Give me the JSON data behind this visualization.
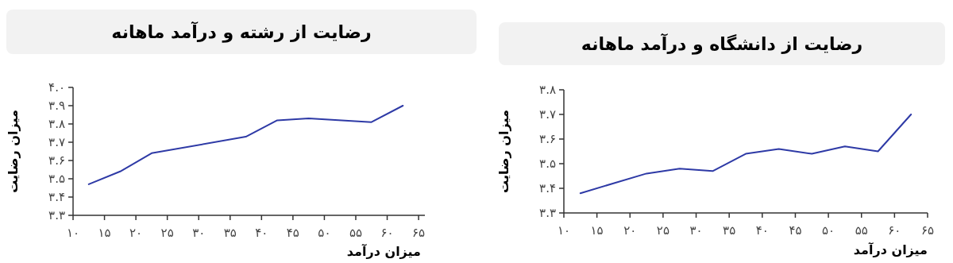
{
  "chart_data": [
    {
      "type": "line",
      "title": "رضایت از رشته و درآمد ماهانه",
      "xlabel": "میزان درآمد",
      "ylabel": "میزان رضایت",
      "x": [
        12.5,
        17.5,
        22.5,
        37.5,
        42.5,
        47.5,
        57.5,
        62.5
      ],
      "series": [
        {
          "color": "#2e3aa6",
          "values": [
            3.47,
            3.54,
            3.64,
            3.73,
            3.82,
            3.83,
            3.81,
            3.9
          ]
        }
      ],
      "xlim": [
        10,
        66
      ],
      "ylim": [
        3.3,
        4.0
      ],
      "xticks": [
        {
          "value": 10,
          "label": "۱۰"
        },
        {
          "value": 15,
          "label": "۱۵"
        },
        {
          "value": 20,
          "label": "۲۰"
        },
        {
          "value": 25,
          "label": "۲۵"
        },
        {
          "value": 30,
          "label": "۳۰"
        },
        {
          "value": 35,
          "label": "۳۵"
        },
        {
          "value": 40,
          "label": "۴۰"
        },
        {
          "value": 45,
          "label": "۴۵"
        },
        {
          "value": 50,
          "label": "۵۰"
        },
        {
          "value": 55,
          "label": "۵۵"
        },
        {
          "value": 60,
          "label": "۶۰"
        },
        {
          "value": 65,
          "label": "۶۵"
        }
      ],
      "yticks": [
        {
          "value": 3.3,
          "label": "۳.۳"
        },
        {
          "value": 3.4,
          "label": "۳.۴"
        },
        {
          "value": 3.5,
          "label": "۳.۵"
        },
        {
          "value": 3.6,
          "label": "۳.۶"
        },
        {
          "value": 3.7,
          "label": "۳.۷"
        },
        {
          "value": 3.8,
          "label": "۳.۸"
        },
        {
          "value": 3.9,
          "label": "۳.۹"
        },
        {
          "value": 4.0,
          "label": "۴.۰"
        }
      ],
      "grid": false
    },
    {
      "type": "line",
      "title": "رضایت از دانشگاه و درآمد ماهانه",
      "xlabel": "میزان درآمد",
      "ylabel": "میزان رضایت",
      "x": [
        12.5,
        17.5,
        22.5,
        27.5,
        32.5,
        37.5,
        42.5,
        47.5,
        52.5,
        57.5,
        62.5
      ],
      "series": [
        {
          "color": "#2e3aa6",
          "values": [
            3.38,
            3.42,
            3.46,
            3.48,
            3.47,
            3.54,
            3.56,
            3.54,
            3.57,
            3.55,
            3.7
          ]
        }
      ],
      "xlim": [
        10,
        65
      ],
      "ylim": [
        3.3,
        3.8
      ],
      "xticks": [
        {
          "value": 10,
          "label": "۱۰"
        },
        {
          "value": 15,
          "label": "۱۵"
        },
        {
          "value": 20,
          "label": "۲۰"
        },
        {
          "value": 25,
          "label": "۲۵"
        },
        {
          "value": 30,
          "label": "۳۰"
        },
        {
          "value": 35,
          "label": "۳۵"
        },
        {
          "value": 40,
          "label": "۴۰"
        },
        {
          "value": 45,
          "label": "۴۵"
        },
        {
          "value": 50,
          "label": "۵۰"
        },
        {
          "value": 55,
          "label": "۵۵"
        },
        {
          "value": 60,
          "label": "۶۰"
        },
        {
          "value": 65,
          "label": "۶۵"
        }
      ],
      "yticks": [
        {
          "value": 3.3,
          "label": "۳.۳"
        },
        {
          "value": 3.4,
          "label": "۳.۴"
        },
        {
          "value": 3.5,
          "label": "۳.۵"
        },
        {
          "value": 3.6,
          "label": "۳.۶"
        },
        {
          "value": 3.7,
          "label": "۳.۷"
        },
        {
          "value": 3.8,
          "label": "۳.۸"
        }
      ],
      "grid": false
    }
  ]
}
